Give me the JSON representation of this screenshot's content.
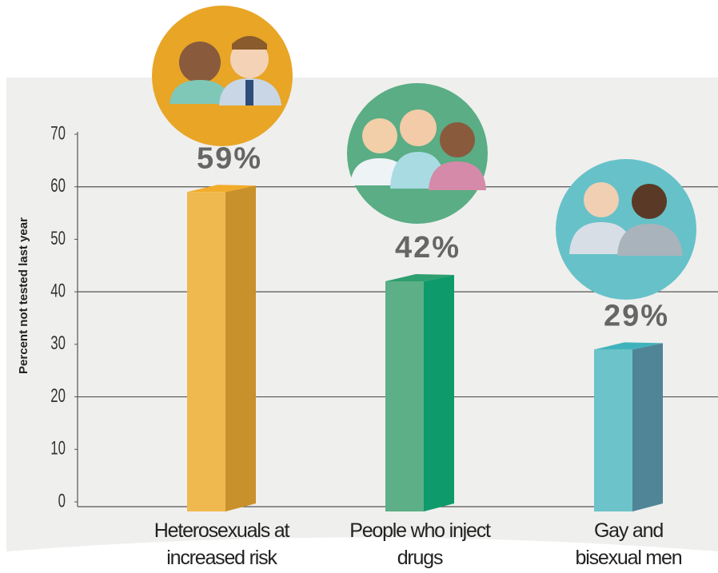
{
  "chart_data": {
    "type": "bar3d",
    "y_axis_label": "Percent not tested last year",
    "categories": [
      "Heterosexuals at increased risk",
      "People who inject drugs",
      "Gay and bisexual men"
    ],
    "values": [
      59,
      42,
      29
    ],
    "value_labels": [
      "59%",
      "42%",
      "29%"
    ],
    "colors": [
      "#f0b94f",
      "#5caf86",
      "#6cc3c9"
    ],
    "side_colors": [
      "#c9912b",
      "#0f9a6b",
      "#4f8596"
    ],
    "top_colors": [
      "#f2ac2a",
      "#2e9f6f",
      "#3fb3bb"
    ],
    "ylim": [
      0,
      70
    ],
    "yticks": [
      0,
      10,
      20,
      30,
      40,
      50,
      60,
      70
    ],
    "gridlines": [
      20,
      40,
      60
    ]
  }
}
